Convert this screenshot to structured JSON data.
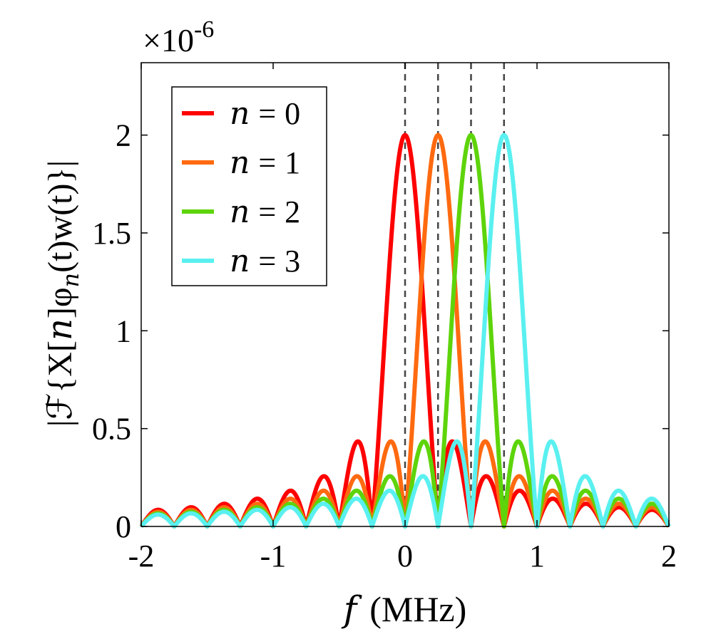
{
  "chart_data": {
    "type": "line",
    "title": "",
    "xlabel_var": "f",
    "xlabel_unit": "(MHz)",
    "ylabel": "|ℱ{X[n]φ_n(t)w(t)}|",
    "ylabel_parts": {
      "pre": "|ℱ{X[",
      "n": "n",
      "mid": "]φ",
      "sub": "n",
      "post": "(t)w(t)}|"
    },
    "y_exponent": "×10",
    "y_exponent_power": "-6",
    "xlim": [
      -2,
      2
    ],
    "ylim": [
      0,
      2.37
    ],
    "xticks": [
      -2,
      -1,
      0,
      1,
      2
    ],
    "xtick_labels": [
      "-2",
      "-1",
      "0",
      "1",
      "2"
    ],
    "yticks": [
      0,
      0.5,
      1,
      1.5,
      2
    ],
    "ytick_labels": [
      "0",
      "0.5",
      "1",
      "1.5",
      "2"
    ],
    "vlines": [
      0,
      0.25,
      0.5,
      0.75
    ],
    "legend_position": "top-left",
    "series": [
      {
        "name": "n = 0",
        "n_label": "n",
        "value_label": "0",
        "color": "#ff0000",
        "center": 0.0,
        "peak": 2.0,
        "null_spacing": 0.25
      },
      {
        "name": "n = 1",
        "n_label": "n",
        "value_label": "1",
        "color": "#ff6a10",
        "center": 0.25,
        "peak": 2.0,
        "null_spacing": 0.25
      },
      {
        "name": "n = 2",
        "n_label": "n",
        "value_label": "2",
        "color": "#5ed40b",
        "center": 0.5,
        "peak": 2.0,
        "null_spacing": 0.25
      },
      {
        "name": "n = 3",
        "n_label": "n",
        "value_label": "3",
        "color": "#5af0f0",
        "center": 0.75,
        "peak": 2.0,
        "null_spacing": 0.25
      }
    ]
  }
}
